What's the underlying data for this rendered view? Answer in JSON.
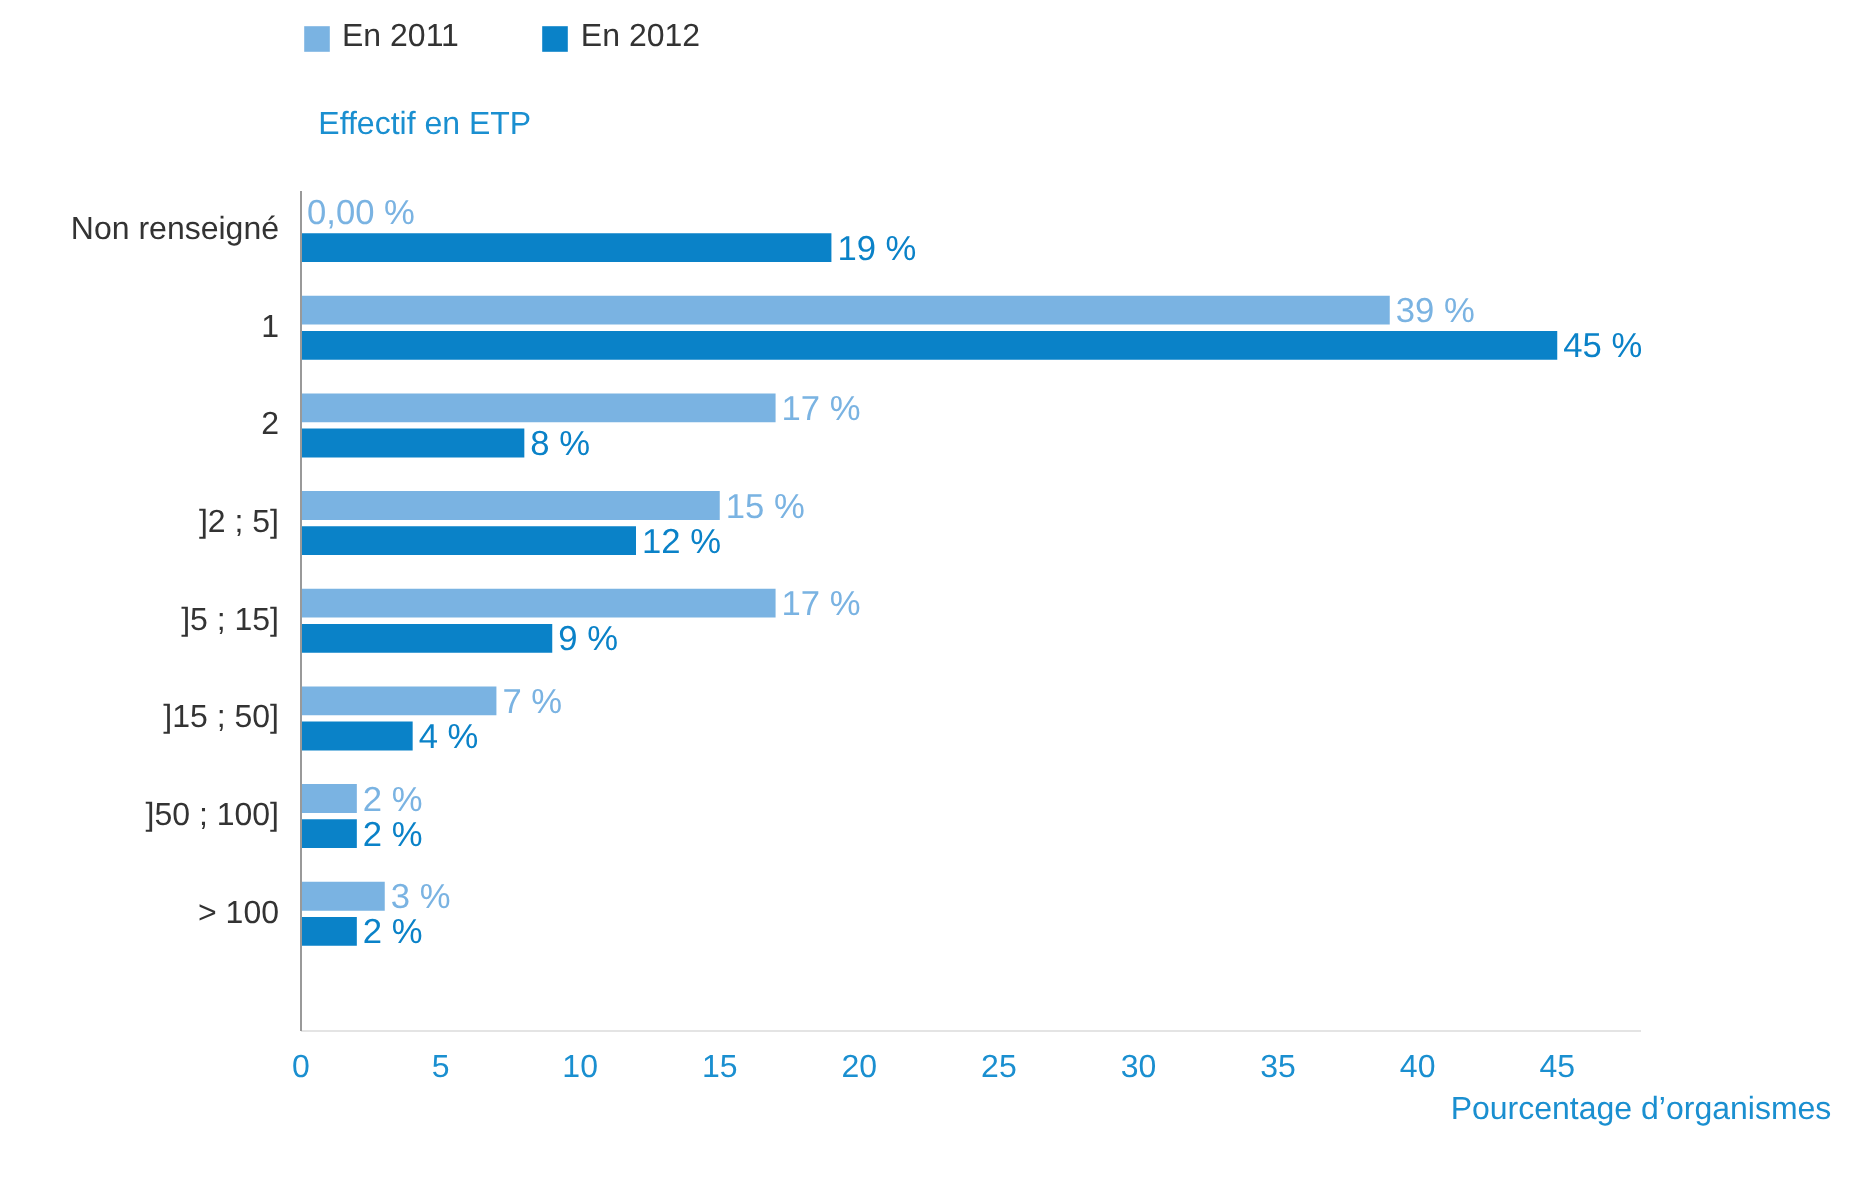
{
  "chart_data": {
    "type": "bar",
    "orientation": "horizontal",
    "ylabel": "Effectif en ETP",
    "xlabel": "Pourcentage d’organismes",
    "categories": [
      "Non renseigné",
      "1",
      "2",
      "]2 ; 5]",
      "]5 ; 15]",
      "]15 ; 50]",
      "]50 ; 100]",
      "> 100"
    ],
    "series": [
      {
        "name": "En 2011",
        "color": "#7ab3e2",
        "values": [
          0,
          39,
          17,
          15,
          17,
          7,
          2,
          3
        ],
        "value_labels": [
          "0,00 %",
          "39 %",
          "17 %",
          "15 %",
          "17 %",
          "7 %",
          "2 %",
          "3 %"
        ]
      },
      {
        "name": "En 2012",
        "color": "#0a82c8",
        "values": [
          19,
          45,
          8,
          12,
          9,
          4,
          2,
          2
        ],
        "value_labels": [
          "19 %",
          "45 %",
          "8 %",
          "12 %",
          "9 %",
          "4 %",
          "2 %",
          "2 %"
        ]
      }
    ],
    "xlim": [
      0,
      48
    ],
    "xticks": [
      0,
      5,
      10,
      15,
      20,
      25,
      30,
      35,
      40,
      45
    ],
    "grid": false,
    "legend": "top"
  }
}
